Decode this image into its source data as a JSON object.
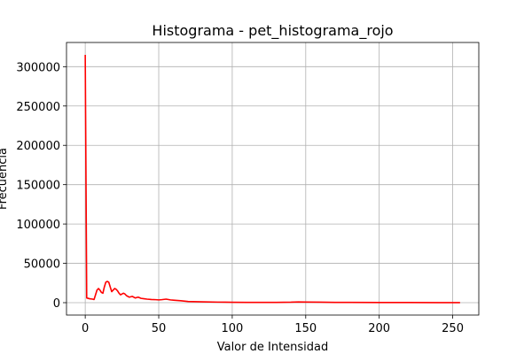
{
  "chart_data": {
    "type": "line",
    "title": "Histograma - pet_histograma_rojo",
    "xlabel": "Valor de Intensidad",
    "ylabel": "Frecuencia",
    "xlim": [
      -12.75,
      267.75
    ],
    "ylim": [
      -15750,
      330750
    ],
    "xticks": [
      0,
      50,
      100,
      150,
      200,
      250
    ],
    "yticks": [
      0,
      50000,
      100000,
      150000,
      200000,
      250000,
      300000
    ],
    "grid": true,
    "series": [
      {
        "color": "#ff0000",
        "x": [
          0,
          1,
          3,
          5,
          6,
          7,
          8,
          9,
          10,
          11,
          12,
          13,
          14,
          15,
          16,
          17,
          18,
          19,
          20,
          21,
          22,
          23,
          24,
          25,
          26,
          27,
          28,
          30,
          32,
          34,
          36,
          38,
          40,
          42,
          45,
          48,
          50,
          52,
          55,
          58,
          60,
          65,
          70,
          80,
          90,
          100,
          110,
          120,
          130,
          140,
          145,
          150,
          160,
          170,
          180,
          200,
          220,
          240,
          255
        ],
        "y": [
          315000,
          6000,
          5000,
          4500,
          4000,
          10000,
          16000,
          18000,
          16000,
          13000,
          12000,
          20000,
          26000,
          27000,
          26000,
          20000,
          14000,
          16000,
          18000,
          17000,
          15000,
          12000,
          10000,
          11000,
          12000,
          11000,
          9000,
          7000,
          8000,
          6000,
          7000,
          5500,
          5000,
          4500,
          4000,
          3800,
          3500,
          3800,
          4500,
          3500,
          3200,
          2500,
          1500,
          1000,
          700,
          500,
          400,
          400,
          400,
          600,
          900,
          800,
          600,
          400,
          300,
          200,
          200,
          100,
          100
        ]
      }
    ]
  }
}
